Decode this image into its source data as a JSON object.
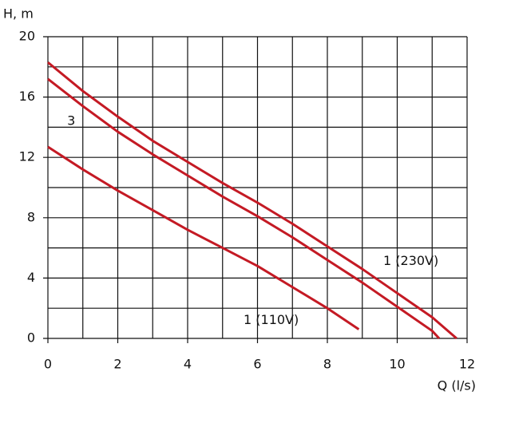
{
  "chart_data": {
    "type": "line",
    "xlabel": "Q (l/s)",
    "ylabel": "H, m",
    "xlim": [
      0,
      12
    ],
    "ylim": [
      0,
      20
    ],
    "xticks": [
      0,
      2,
      4,
      6,
      8,
      10,
      12
    ],
    "yticks": [
      0,
      4,
      8,
      12,
      16,
      20
    ],
    "x_minor_ticks": [
      1,
      3,
      5,
      7,
      9,
      11
    ],
    "y_minor_ticks": [
      2,
      6,
      10,
      14,
      18
    ],
    "grid": true,
    "series": [
      {
        "color": "#c41a24",
        "x": [
          0,
          1,
          2,
          3,
          4,
          5,
          6,
          7,
          8,
          9,
          10,
          11,
          11.7
        ],
        "values": [
          18.3,
          16.4,
          14.7,
          13.1,
          11.7,
          10.3,
          9.0,
          7.6,
          6.1,
          4.6,
          3.0,
          1.4,
          0
        ]
      },
      {
        "color": "#c41a24",
        "x": [
          0,
          1,
          2,
          3,
          4,
          5,
          6,
          7,
          8,
          9,
          10,
          11,
          11.2
        ],
        "values": [
          17.2,
          15.4,
          13.7,
          12.2,
          10.8,
          9.4,
          8.1,
          6.7,
          5.2,
          3.7,
          2.1,
          0.5,
          0
        ]
      },
      {
        "color": "#c41a24",
        "x": [
          0,
          1,
          2,
          3,
          4,
          5,
          6,
          7,
          8,
          8.9
        ],
        "values": [
          12.7,
          11.2,
          9.8,
          8.5,
          7.2,
          6.0,
          4.8,
          3.4,
          2.0,
          0.6
        ]
      }
    ],
    "annotations": [
      {
        "text": "3",
        "x": 0.55,
        "y": 14.4
      },
      {
        "text": "1 (230V)",
        "x": 9.6,
        "y": 5.1
      },
      {
        "text": "1 (110V)",
        "x": 5.6,
        "y": 1.2
      }
    ]
  }
}
